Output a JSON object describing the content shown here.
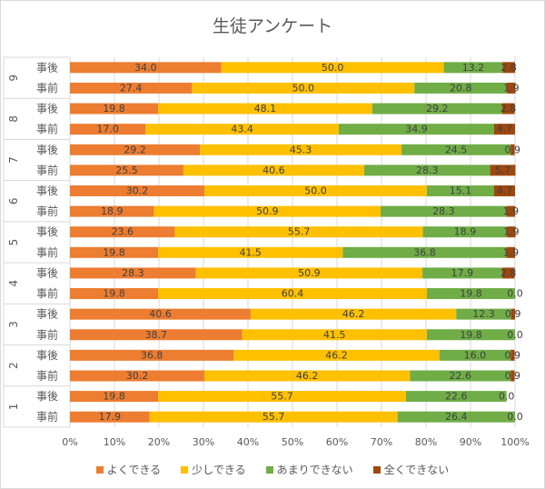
{
  "chart_data": {
    "type": "bar",
    "orientation": "horizontal",
    "stacked": "percent",
    "title": "生徒アンケート",
    "groups": [
      "9",
      "8",
      "7",
      "6",
      "5",
      "4",
      "3",
      "2",
      "1"
    ],
    "categories": [
      {
        "group": "9",
        "label": "事後"
      },
      {
        "group": "9",
        "label": "事前"
      },
      {
        "group": "8",
        "label": "事後"
      },
      {
        "group": "8",
        "label": "事前"
      },
      {
        "group": "7",
        "label": "事後"
      },
      {
        "group": "7",
        "label": "事前"
      },
      {
        "group": "6",
        "label": "事後"
      },
      {
        "group": "6",
        "label": "事前"
      },
      {
        "group": "5",
        "label": "事後"
      },
      {
        "group": "5",
        "label": "事前"
      },
      {
        "group": "4",
        "label": "事後"
      },
      {
        "group": "4",
        "label": "事前"
      },
      {
        "group": "3",
        "label": "事後"
      },
      {
        "group": "3",
        "label": "事前"
      },
      {
        "group": "2",
        "label": "事後"
      },
      {
        "group": "2",
        "label": "事前"
      },
      {
        "group": "1",
        "label": "事後"
      },
      {
        "group": "1",
        "label": "事前"
      }
    ],
    "series": [
      {
        "name": "よくできる",
        "color": "#ED7D31",
        "values": [
          34.0,
          27.4,
          19.8,
          17.0,
          29.2,
          25.5,
          30.2,
          18.9,
          23.6,
          19.8,
          28.3,
          19.8,
          40.6,
          38.7,
          36.8,
          30.2,
          19.8,
          17.9
        ]
      },
      {
        "name": "少しできる",
        "color": "#FFC000",
        "values": [
          50.0,
          50.0,
          48.1,
          43.4,
          45.3,
          40.6,
          50.0,
          50.9,
          55.7,
          41.5,
          50.9,
          60.4,
          46.2,
          41.5,
          46.2,
          46.2,
          55.7,
          55.7
        ]
      },
      {
        "name": "あまりできない",
        "color": "#70AD47",
        "values": [
          13.2,
          20.8,
          29.2,
          34.9,
          24.5,
          28.3,
          15.1,
          28.3,
          18.9,
          36.8,
          17.9,
          19.8,
          12.3,
          19.8,
          16.0,
          22.6,
          22.6,
          26.4
        ]
      },
      {
        "name": "全くできない",
        "color": "#9E480E",
        "values": [
          2.8,
          1.9,
          2.8,
          4.7,
          0.9,
          5.7,
          4.7,
          1.9,
          1.9,
          1.9,
          2.8,
          0.0,
          0.9,
          0.0,
          0.9,
          0.9,
          0.0,
          0.0
        ]
      }
    ],
    "xticks": [
      "0%",
      "10%",
      "20%",
      "30%",
      "40%",
      "50%",
      "60%",
      "70%",
      "80%",
      "90%",
      "100%"
    ],
    "xlim": [
      0,
      100
    ],
    "grid": true,
    "legend": "bottom"
  }
}
